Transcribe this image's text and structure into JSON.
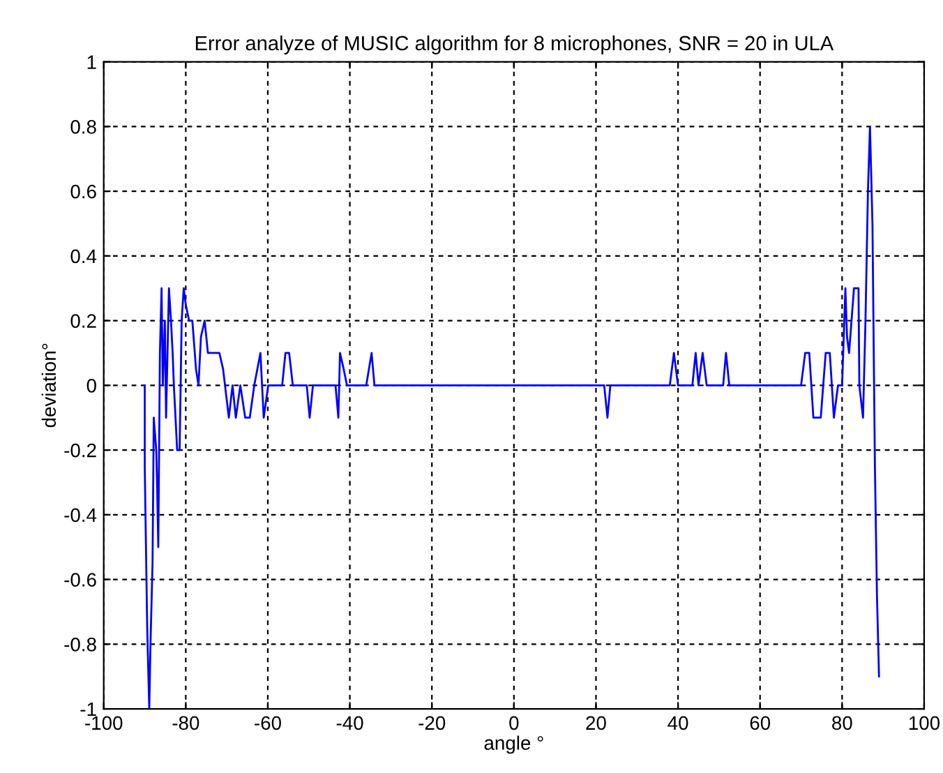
{
  "chart_data": {
    "type": "line",
    "title": "Error analyze of MUSIC algorithm for 8 microphones, SNR = 20 in ULA",
    "xlabel": "angle °",
    "ylabel": "deviation°",
    "grid": true,
    "line_style": "solid",
    "marker": "none",
    "xlim": [
      -100,
      100
    ],
    "ylim": [
      -1,
      1
    ],
    "xticks": [
      -100,
      -80,
      -60,
      -40,
      -20,
      0,
      20,
      40,
      60,
      80,
      100
    ],
    "yticks": [
      -1,
      -0.8,
      -0.6,
      -0.4,
      -0.2,
      0,
      0.2,
      0.4,
      0.6,
      0.8,
      1
    ],
    "series": [
      {
        "color": "#0000ff",
        "x": [
          -90,
          -90,
          -89.4,
          -88.9,
          -88.6,
          -88.1,
          -87.8,
          -87.2,
          -87,
          -86.7,
          -86.3,
          -85.9,
          -85.6,
          -85.1,
          -84.8,
          -84.1,
          -83.6,
          -83.2,
          -82.9,
          -82.1,
          -81.5,
          -81,
          -80.5,
          -80,
          -79.2,
          -78.4,
          -77.5,
          -76.9,
          -76.3,
          -75.4,
          -74.6,
          -71.8,
          -70.9,
          -69.5,
          -68.6,
          -67.8,
          -66.7,
          -65.5,
          -64.4,
          -63.3,
          -61.8,
          -61,
          -59.9,
          -56.5,
          -55.7,
          -54.8,
          -53.9,
          -50.5,
          -49.8,
          -49,
          -43.5,
          -42.8,
          -42.4,
          -41.5,
          -40.7,
          -36,
          -34.7,
          -34,
          22,
          22.8,
          23.5,
          38,
          39,
          40,
          43.5,
          44.3,
          45,
          46,
          47,
          51,
          51.7,
          52.5,
          70,
          71,
          72,
          73,
          74.8,
          76,
          77,
          78,
          79,
          80,
          80.8,
          81.2,
          81.7,
          82.9,
          84,
          84.2,
          85.1,
          85.7,
          86.3,
          86.8,
          87.4,
          88,
          88.5,
          89
        ],
        "values": [
          0,
          -0.25,
          -0.75,
          -1,
          -0.8,
          -0.55,
          -0.1,
          -0.2,
          -0.3,
          -0.5,
          0.1,
          0.3,
          0,
          0.2,
          -0.1,
          0.3,
          0.2,
          0.1,
          0,
          -0.2,
          -0.2,
          0.2,
          0.3,
          0.25,
          0.2,
          0.2,
          0.05,
          0,
          0.15,
          0.2,
          0.1,
          0.1,
          0.05,
          -0.1,
          0,
          -0.1,
          0,
          -0.1,
          -0.1,
          0,
          0.1,
          -0.1,
          0,
          0,
          0.1,
          0.1,
          0,
          0,
          -0.1,
          0,
          0,
          -0.1,
          0.1,
          0.05,
          0,
          0,
          0.1,
          0,
          0,
          -0.1,
          0,
          0,
          0.1,
          0,
          0,
          0.1,
          0,
          0.1,
          0,
          0,
          0.1,
          0,
          0,
          0.1,
          0.1,
          -0.1,
          -0.1,
          0.1,
          0.1,
          -0.1,
          0,
          0,
          0.3,
          0.15,
          0.1,
          0.3,
          0.3,
          0,
          -0.1,
          0.2,
          0.6,
          0.8,
          0.5,
          -0.25,
          -0.65,
          -0.9
        ]
      }
    ]
  }
}
